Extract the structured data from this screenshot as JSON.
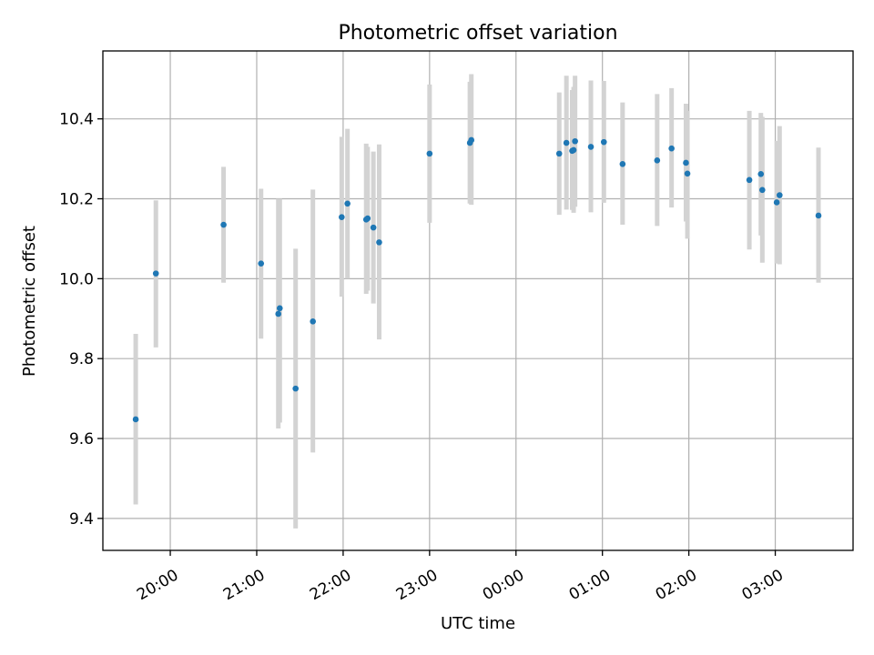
{
  "chart_data": {
    "type": "scatter",
    "title": "Photometric offset variation",
    "xlabel": "UTC time",
    "ylabel": "Photometric offset",
    "xlim_hours": [
      19.22,
      27.9
    ],
    "ylim": [
      9.32,
      10.57
    ],
    "x_ticks": [
      {
        "hour": 20,
        "label": "20:00"
      },
      {
        "hour": 21,
        "label": "21:00"
      },
      {
        "hour": 22,
        "label": "22:00"
      },
      {
        "hour": 23,
        "label": "23:00"
      },
      {
        "hour": 24,
        "label": "00:00"
      },
      {
        "hour": 25,
        "label": "01:00"
      },
      {
        "hour": 26,
        "label": "02:00"
      },
      {
        "hour": 27,
        "label": "03:00"
      }
    ],
    "y_ticks": [
      {
        "value": 9.4,
        "label": "9.4"
      },
      {
        "value": 9.6,
        "label": "9.6"
      },
      {
        "value": 9.8,
        "label": "9.8"
      },
      {
        "value": 10.0,
        "label": "10.0"
      },
      {
        "value": 10.2,
        "label": "10.2"
      },
      {
        "value": 10.4,
        "label": "10.4"
      }
    ],
    "grid": true,
    "point_color": "#1f77b4",
    "errorbar_color": "#d3d3d3",
    "points": [
      {
        "time": "19:36",
        "y": 9.648,
        "err_low": 9.435,
        "err_high": 9.862
      },
      {
        "time": "19:50",
        "y": 10.013,
        "err_low": 9.828,
        "err_high": 10.196
      },
      {
        "time": "20:37",
        "y": 10.135,
        "err_low": 9.99,
        "err_high": 10.28
      },
      {
        "time": "21:03",
        "y": 10.038,
        "err_low": 9.85,
        "err_high": 10.225
      },
      {
        "time": "21:15",
        "y": 9.912,
        "err_low": 9.625,
        "err_high": 10.2
      },
      {
        "time": "21:16",
        "y": 9.926,
        "err_low": 9.64,
        "err_high": 10.2
      },
      {
        "time": "21:27",
        "y": 9.725,
        "err_low": 9.375,
        "err_high": 10.075
      },
      {
        "time": "21:39",
        "y": 9.893,
        "err_low": 9.565,
        "err_high": 10.223
      },
      {
        "time": "21:59",
        "y": 10.154,
        "err_low": 9.955,
        "err_high": 10.355
      },
      {
        "time": "22:03",
        "y": 10.188,
        "err_low": 10.0,
        "err_high": 10.375
      },
      {
        "time": "22:16",
        "y": 10.148,
        "err_low": 9.962,
        "err_high": 10.338
      },
      {
        "time": "22:17",
        "y": 10.151,
        "err_low": 9.97,
        "err_high": 10.33
      },
      {
        "time": "22:21",
        "y": 10.128,
        "err_low": 9.938,
        "err_high": 10.318
      },
      {
        "time": "22:25",
        "y": 10.091,
        "err_low": 9.848,
        "err_high": 10.336
      },
      {
        "time": "23:00",
        "y": 10.313,
        "err_low": 10.14,
        "err_high": 10.486
      },
      {
        "time": "23:28",
        "y": 10.34,
        "err_low": 10.188,
        "err_high": 10.493
      },
      {
        "time": "23:29",
        "y": 10.347,
        "err_low": 10.185,
        "err_high": 10.512
      },
      {
        "time": "00:30",
        "y": 10.313,
        "err_low": 10.16,
        "err_high": 10.466
      },
      {
        "time": "00:35",
        "y": 10.34,
        "err_low": 10.173,
        "err_high": 10.508
      },
      {
        "time": "00:39",
        "y": 10.32,
        "err_low": 10.172,
        "err_high": 10.472
      },
      {
        "time": "00:40",
        "y": 10.322,
        "err_low": 10.165,
        "err_high": 10.48
      },
      {
        "time": "00:41",
        "y": 10.344,
        "err_low": 10.18,
        "err_high": 10.508
      },
      {
        "time": "00:52",
        "y": 10.33,
        "err_low": 10.166,
        "err_high": 10.496
      },
      {
        "time": "01:01",
        "y": 10.342,
        "err_low": 10.19,
        "err_high": 10.495
      },
      {
        "time": "01:14",
        "y": 10.287,
        "err_low": 10.135,
        "err_high": 10.441
      },
      {
        "time": "01:38",
        "y": 10.296,
        "err_low": 10.132,
        "err_high": 10.462
      },
      {
        "time": "01:48",
        "y": 10.326,
        "err_low": 10.178,
        "err_high": 10.477
      },
      {
        "time": "01:58",
        "y": 10.29,
        "err_low": 10.143,
        "err_high": 10.438
      },
      {
        "time": "01:59",
        "y": 10.263,
        "err_low": 10.1,
        "err_high": 10.42
      },
      {
        "time": "02:42",
        "y": 10.247,
        "err_low": 10.073,
        "err_high": 10.42
      },
      {
        "time": "02:50",
        "y": 10.262,
        "err_low": 10.108,
        "err_high": 10.415
      },
      {
        "time": "02:51",
        "y": 10.222,
        "err_low": 10.04,
        "err_high": 10.405
      },
      {
        "time": "03:01",
        "y": 10.191,
        "err_low": 10.038,
        "err_high": 10.345
      },
      {
        "time": "03:03",
        "y": 10.209,
        "err_low": 10.036,
        "err_high": 10.382
      },
      {
        "time": "03:30",
        "y": 10.158,
        "err_low": 9.99,
        "err_high": 10.328
      }
    ]
  }
}
